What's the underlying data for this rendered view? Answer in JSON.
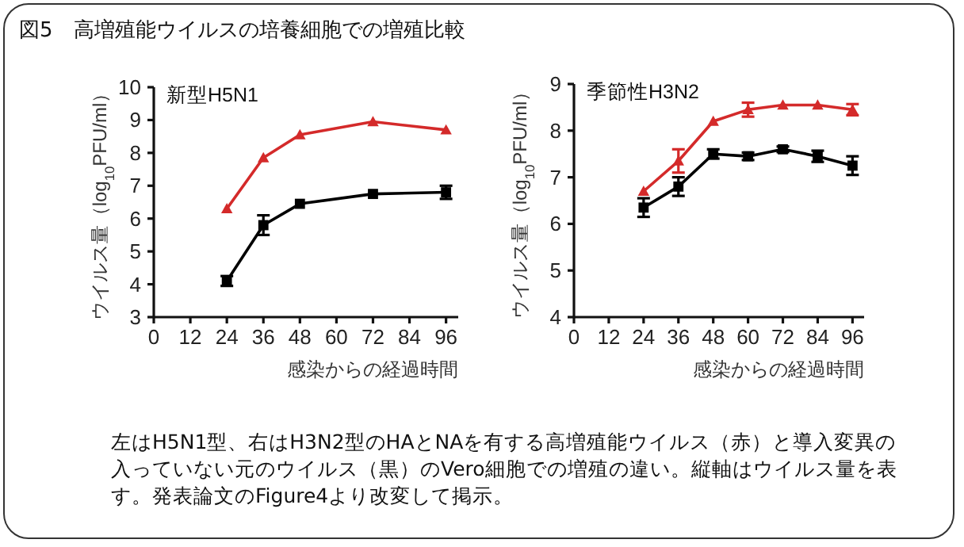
{
  "chart_data": [
    {
      "type": "other",
      "title": "図5　高増殖能ウイルスの培養細胞での増殖比較"
    },
    {
      "type": "line",
      "title": "新型H5N1",
      "xlabel": "感染からの経過時間",
      "ylabel": "ウイルス量（log$_{10}$PFU/ml）",
      "x": [
        24,
        36,
        48,
        72,
        96
      ],
      "xlim": [
        0,
        100
      ],
      "xticks": [
        0,
        12,
        24,
        36,
        48,
        60,
        72,
        84,
        96
      ],
      "ylim": [
        3,
        10
      ],
      "yticks": [
        3,
        4,
        5,
        6,
        7,
        8,
        9,
        10
      ],
      "grid": false,
      "series": [
        {
          "color": "#d42a2a",
          "marker": "triangle",
          "values": [
            6.3,
            7.85,
            8.55,
            8.95,
            8.7
          ]
        },
        {
          "color": "#000000",
          "marker": "square",
          "values": [
            4.1,
            5.8,
            6.45,
            6.75,
            6.8
          ],
          "errors": [
            0.15,
            0.3,
            null,
            null,
            0.2
          ]
        }
      ]
    },
    {
      "type": "line",
      "title": "季節性H3N2",
      "xlabel": "感染からの経過時間",
      "ylabel": "ウイルス量（log$_{10}$PFU/ml）",
      "x": [
        24,
        36,
        48,
        60,
        72,
        84,
        96
      ],
      "xlim": [
        0,
        100
      ],
      "xticks": [
        0,
        12,
        24,
        36,
        48,
        60,
        72,
        84,
        96
      ],
      "ylim": [
        4,
        9
      ],
      "yticks": [
        4,
        5,
        6,
        7,
        8,
        9
      ],
      "grid": false,
      "series": [
        {
          "color": "#d42a2a",
          "marker": "triangle",
          "values": [
            6.7,
            7.35,
            8.2,
            8.45,
            8.55,
            8.55,
            8.45
          ],
          "errors": [
            null,
            0.25,
            null,
            0.15,
            null,
            null,
            0.12
          ]
        },
        {
          "color": "#000000",
          "marker": "square",
          "values": [
            6.35,
            6.8,
            7.5,
            7.45,
            7.6,
            7.45,
            7.25
          ],
          "errors": [
            0.2,
            0.2,
            0.1,
            0.08,
            0.06,
            0.12,
            0.2
          ]
        }
      ]
    },
    {
      "type": "other",
      "annotations": [
        "左はH5N1型、右はH3N2型のHAとNAを有する高増殖能ウイルス（赤）と導入変異の入っていない元のウイルス（黒）のVero細胞での増殖の違い。縦軸はウイルス量を表す。発表論文のFigure4より改変して掲示。"
      ]
    }
  ]
}
